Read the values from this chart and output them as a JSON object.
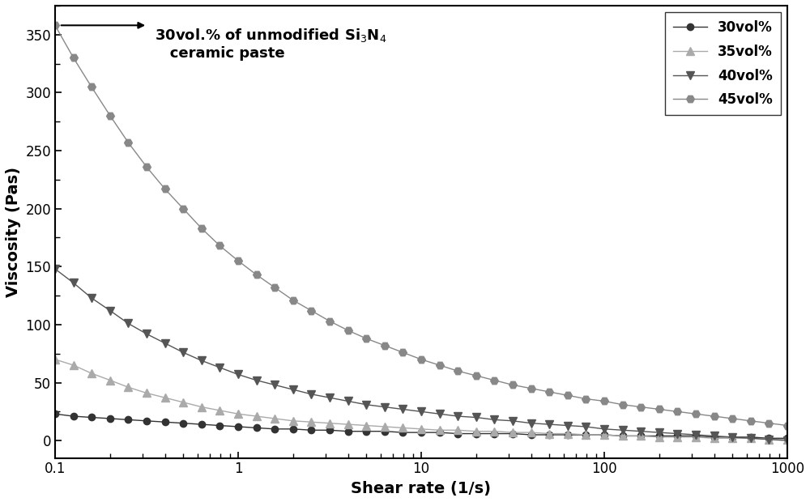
{
  "title": "",
  "xlabel": "Shear rate (1/s)",
  "ylabel": "Viscosity (Pas)",
  "xlim": [
    0.1,
    1000
  ],
  "ylim": [
    -15,
    375
  ],
  "series": [
    {
      "label": "30vol%",
      "color": "#333333",
      "marker": "o",
      "markersize": 6,
      "x": [
        0.1,
        0.126,
        0.158,
        0.2,
        0.251,
        0.316,
        0.398,
        0.501,
        0.631,
        0.794,
        1.0,
        1.259,
        1.585,
        1.995,
        2.512,
        3.162,
        3.981,
        5.012,
        6.31,
        7.943,
        10.0,
        12.59,
        15.85,
        19.95,
        25.12,
        31.62,
        39.81,
        50.12,
        63.1,
        79.43,
        100.0,
        125.9,
        158.5,
        199.5,
        251.2,
        316.2,
        398.1,
        501.2,
        631.0,
        794.3,
        1000.0
      ],
      "y": [
        23,
        21,
        20,
        19,
        18,
        17,
        16,
        15,
        14,
        13,
        12,
        11,
        10,
        10,
        9,
        9,
        8,
        8,
        8,
        7,
        7,
        7,
        6,
        6,
        6,
        6,
        5,
        5,
        5,
        5,
        5,
        4,
        4,
        4,
        4,
        4,
        3,
        3,
        3,
        2,
        2
      ]
    },
    {
      "label": "35vol%",
      "color": "#aaaaaa",
      "marker": "^",
      "markersize": 7,
      "x": [
        0.1,
        0.126,
        0.158,
        0.2,
        0.251,
        0.316,
        0.398,
        0.501,
        0.631,
        0.794,
        1.0,
        1.259,
        1.585,
        1.995,
        2.512,
        3.162,
        3.981,
        5.012,
        6.31,
        7.943,
        10.0,
        12.59,
        15.85,
        19.95,
        25.12,
        31.62,
        39.81,
        50.12,
        63.1,
        79.43,
        100.0,
        125.9,
        158.5,
        199.5,
        251.2,
        316.2,
        398.1,
        501.2,
        631.0,
        794.3,
        1000.0
      ],
      "y": [
        70,
        65,
        58,
        52,
        46,
        41,
        37,
        33,
        29,
        26,
        23,
        21,
        19,
        17,
        16,
        15,
        14,
        13,
        12,
        11,
        10,
        9,
        9,
        8,
        8,
        7,
        7,
        6,
        6,
        5,
        5,
        4,
        4,
        3,
        3,
        3,
        2,
        2,
        2,
        1,
        1
      ]
    },
    {
      "label": "40vol%",
      "color": "#555555",
      "marker": "v",
      "markersize": 7,
      "x": [
        0.1,
        0.126,
        0.158,
        0.2,
        0.251,
        0.316,
        0.398,
        0.501,
        0.631,
        0.794,
        1.0,
        1.259,
        1.585,
        1.995,
        2.512,
        3.162,
        3.981,
        5.012,
        6.31,
        7.943,
        10.0,
        12.59,
        15.85,
        19.95,
        25.12,
        31.62,
        39.81,
        50.12,
        63.1,
        79.43,
        100.0,
        125.9,
        158.5,
        199.5,
        251.2,
        316.2,
        398.1,
        501.2,
        631.0,
        794.3,
        1000.0
      ],
      "y": [
        148,
        136,
        123,
        112,
        101,
        92,
        84,
        76,
        69,
        63,
        57,
        52,
        48,
        44,
        40,
        37,
        34,
        31,
        29,
        27,
        25,
        23,
        21,
        20,
        18,
        17,
        15,
        14,
        13,
        12,
        10,
        9,
        8,
        7,
        6,
        5,
        4,
        3,
        2,
        1,
        0
      ]
    },
    {
      "label": "45vol%",
      "color": "#888888",
      "marker": "H",
      "markersize": 7,
      "x": [
        0.1,
        0.126,
        0.158,
        0.2,
        0.251,
        0.316,
        0.398,
        0.501,
        0.631,
        0.794,
        1.0,
        1.259,
        1.585,
        1.995,
        2.512,
        3.162,
        3.981,
        5.012,
        6.31,
        7.943,
        10.0,
        12.59,
        15.85,
        19.95,
        25.12,
        31.62,
        39.81,
        50.12,
        63.1,
        79.43,
        100.0,
        125.9,
        158.5,
        199.5,
        251.2,
        316.2,
        398.1,
        501.2,
        631.0,
        794.3,
        1000.0
      ],
      "y": [
        358,
        330,
        305,
        280,
        257,
        236,
        217,
        200,
        183,
        168,
        155,
        143,
        132,
        121,
        112,
        103,
        95,
        88,
        82,
        76,
        70,
        65,
        60,
        56,
        52,
        48,
        45,
        42,
        39,
        36,
        34,
        31,
        29,
        27,
        25,
        23,
        21,
        19,
        17,
        15,
        13
      ]
    }
  ],
  "background_color": "#ffffff",
  "annotation_fontsize": 13,
  "axis_label_fontsize": 14,
  "tick_fontsize": 12,
  "legend_fontsize": 12
}
